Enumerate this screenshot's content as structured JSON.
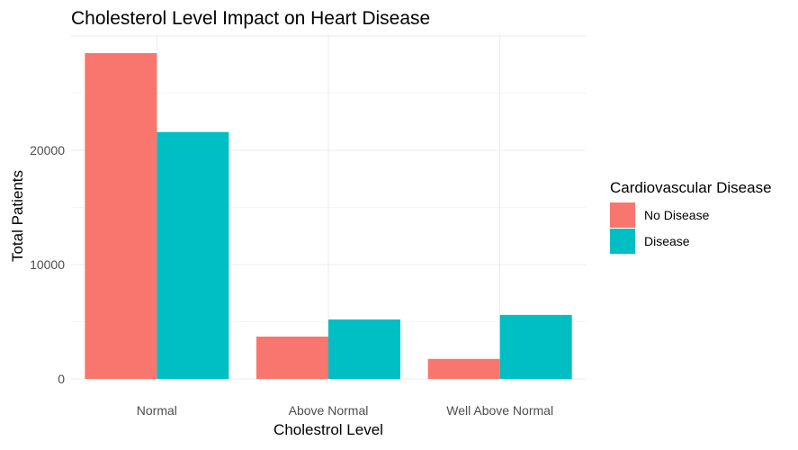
{
  "chart_data": {
    "type": "bar",
    "title": "Cholesterol Level Impact on Heart Disease",
    "xlabel": "Cholestrol Level",
    "ylabel": "Total Patients",
    "categories": [
      "Normal",
      "Above Normal",
      "Well Above Normal"
    ],
    "series": [
      {
        "name": "No Disease",
        "color": "#F8766D",
        "values": [
          28500,
          3700,
          1750
        ]
      },
      {
        "name": "Disease",
        "color": "#00BFC4",
        "values": [
          21600,
          5200,
          5600
        ]
      }
    ],
    "ylim": [
      0,
      30000
    ],
    "yticks": [
      0,
      10000,
      20000
    ],
    "ytick_labels": [
      "0",
      "10000",
      "20000"
    ],
    "grid": true,
    "legend": {
      "title": "Cardiovascular Disease",
      "position": "right"
    }
  }
}
